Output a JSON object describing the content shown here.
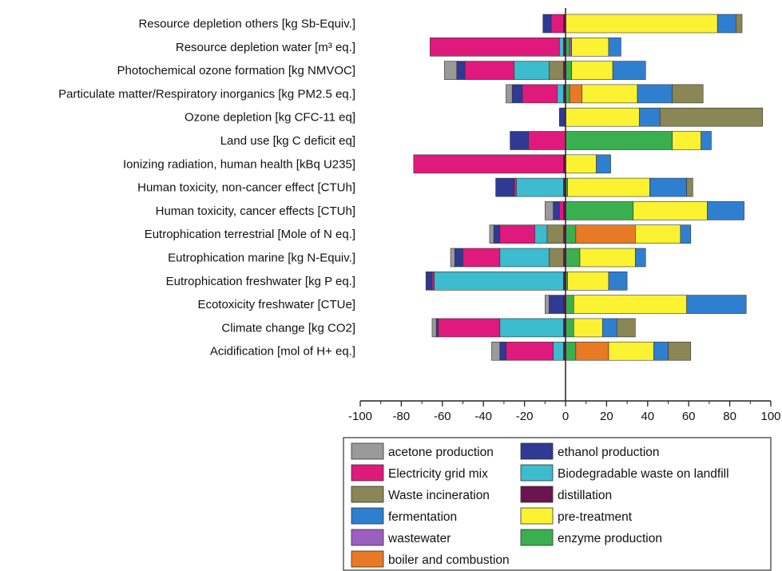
{
  "chart_data": {
    "type": "bar",
    "orientation": "horizontal",
    "stacked": "diverging",
    "xlim": [
      -100,
      100
    ],
    "xticks": [
      "-100",
      "-80",
      "-60",
      "-40",
      "-20",
      "0",
      "20",
      "40",
      "60",
      "80",
      "100"
    ],
    "grid": false,
    "legend_position": "bottom",
    "categories": [
      "Resource depletion others [kg Sb-Equiv.]",
      "Resource depletion water [m³ eq.]",
      "Photochemical ozone formation [kg NMVOC]",
      "Particulate matter/Respiratory inorganics [kg PM2.5 eq.]",
      "Ozone depletion [kg CFC-11 eq]",
      "Land use [kg C deficit eq]",
      "Ionizing radiation, human health [kBq U235]",
      "Human toxicity, non-cancer effect [CTUh]",
      "Human toxicity, cancer effects [CTUh]",
      "Eutrophication terrestrial [Mole of N eq.]",
      "Eutrophication marine [kg N-Equiv.]",
      "Eutrophication freshwater [kg P eq.]",
      "Ecotoxicity freshwater [CTUe]",
      "Climate change [kg CO2]",
      "Acidification [mol of H+ eq.]"
    ],
    "series": [
      {
        "name": "acetone production",
        "color": "#9a9a9a",
        "values": [
          0,
          0,
          -6,
          -3,
          0,
          0,
          0,
          0,
          -4,
          -2,
          -2,
          0,
          -2,
          -2,
          -4
        ]
      },
      {
        "name": "ethanol production",
        "color": "#2e3a94",
        "values": [
          -4,
          0,
          -4,
          -5,
          -3,
          -9,
          0,
          -9,
          -3,
          -3,
          -4,
          -3,
          -7,
          -1,
          -3
        ]
      },
      {
        "name": "Electricity grid mix",
        "color": "#e0197d",
        "values": [
          -6,
          -63,
          -24,
          -17,
          0,
          -18,
          -73,
          -1,
          -2,
          -17,
          -18,
          -1,
          0,
          -30,
          -23
        ]
      },
      {
        "name": "Biodegradable waste on landfill",
        "color": "#3cbcce",
        "values": [
          0,
          -2,
          -17,
          -3,
          0,
          0,
          0,
          -23,
          0,
          -6,
          -24,
          -63,
          0,
          -31,
          -5
        ]
      },
      {
        "name": "Waste incineration",
        "color": "#8a8656",
        "values": [
          0,
          0,
          -7,
          0,
          0,
          0,
          0,
          0,
          0,
          -8,
          -7,
          0,
          0,
          0,
          0
        ]
      },
      {
        "name": "distillation",
        "color": "#6b1450",
        "values": [
          -1,
          -1,
          -1,
          -1,
          0,
          0,
          -1,
          -1,
          -1,
          -1,
          -1,
          -1,
          -1,
          -1,
          -1
        ]
      },
      {
        "name": "fermentation",
        "color": "#2f7fd1",
        "values": [
          9,
          6,
          16,
          17,
          10,
          5,
          7,
          18,
          18,
          5,
          5,
          9,
          29,
          7,
          7
        ]
      },
      {
        "name": "pre-treatment",
        "color": "#fbf232",
        "values": [
          74,
          18,
          20,
          27,
          36,
          14,
          15,
          40,
          36,
          22,
          27,
          20,
          55,
          14,
          22
        ]
      },
      {
        "name": "wastewater",
        "color": "#9b5fc0",
        "values": [
          0,
          1,
          0,
          0,
          0,
          0,
          0,
          0,
          0,
          0,
          0,
          0,
          0,
          0,
          0
        ]
      },
      {
        "name": "enzyme production",
        "color": "#3aaf4f",
        "values": [
          0,
          2,
          3,
          2,
          0,
          52,
          0,
          1,
          33,
          5,
          7,
          1,
          4,
          4,
          5
        ]
      },
      {
        "name": "boiler and combustion",
        "color": "#e87a25",
        "values": [
          0,
          0,
          0,
          6,
          0,
          0,
          0,
          0,
          0,
          29,
          0,
          0,
          0,
          0,
          16
        ]
      },
      {
        "name": "Waste incineration (positive)",
        "color": "#8a8656",
        "legend": false,
        "values": [
          3,
          0,
          0,
          15,
          50,
          0,
          0,
          3,
          0,
          0,
          0,
          0,
          0,
          9,
          11
        ]
      }
    ],
    "positive_stack_order": [
      "enzyme production",
      "boiler and combustion",
      "wastewater",
      "pre-treatment",
      "fermentation",
      "Waste incineration (positive)"
    ]
  }
}
